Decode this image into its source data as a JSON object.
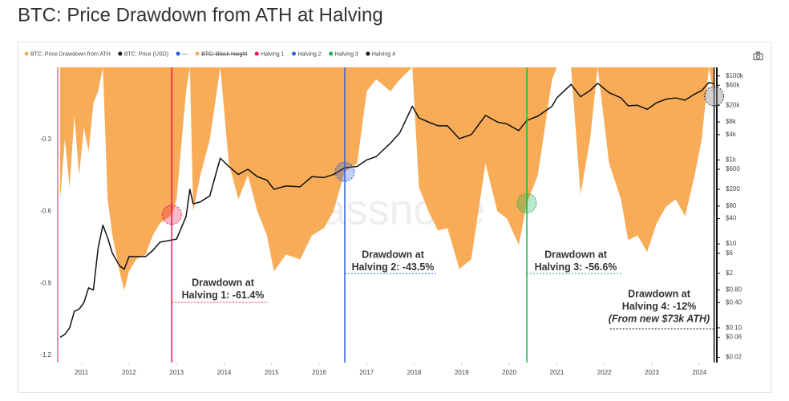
{
  "chart_data": {
    "type": "area",
    "title": "BTC: Price Drawdown from ATH at Halving",
    "watermark": "glassnode",
    "x": [
      2010.55,
      2010.65,
      2010.75,
      2010.85,
      2010.95,
      2011.05,
      2011.15,
      2011.25,
      2011.35,
      2011.45,
      2011.55,
      2011.65,
      2011.8,
      2011.9,
      2012.0,
      2012.15,
      2012.35,
      2012.5,
      2012.65,
      2012.9,
      2013.0,
      2013.2,
      2013.28,
      2013.35,
      2013.5,
      2013.7,
      2013.92,
      2014.1,
      2014.3,
      2014.5,
      2014.7,
      2014.9,
      2015.05,
      2015.3,
      2015.6,
      2015.85,
      2016.1,
      2016.3,
      2016.54,
      2016.8,
      2017.0,
      2017.2,
      2017.5,
      2017.7,
      2017.96,
      2018.1,
      2018.3,
      2018.5,
      2018.7,
      2018.95,
      2019.2,
      2019.5,
      2019.75,
      2019.95,
      2020.2,
      2020.37,
      2020.6,
      2020.9,
      2021.0,
      2021.3,
      2021.5,
      2021.7,
      2021.86,
      2022.1,
      2022.35,
      2022.5,
      2022.7,
      2022.9,
      2023.1,
      2023.3,
      2023.5,
      2023.7,
      2023.9,
      2024.05,
      2024.2,
      2024.31
    ],
    "series": [
      {
        "name": "BTC: Price Drawdown from ATH",
        "color": "#f8ac57",
        "axis": "y",
        "values": [
          -0.55,
          -0.3,
          -0.5,
          -0.2,
          -0.45,
          -0.25,
          -0.35,
          -0.15,
          -0.1,
          0,
          -0.55,
          -0.7,
          -0.85,
          -0.93,
          -0.85,
          -0.8,
          -0.78,
          -0.7,
          -0.65,
          -0.614,
          -0.55,
          -0.1,
          0,
          -0.6,
          -0.45,
          -0.3,
          0,
          -0.4,
          -0.55,
          -0.45,
          -0.6,
          -0.7,
          -0.85,
          -0.78,
          -0.8,
          -0.7,
          -0.67,
          -0.6,
          -0.435,
          -0.4,
          -0.1,
          -0.05,
          -0.1,
          -0.05,
          0,
          -0.5,
          -0.6,
          -0.68,
          -0.67,
          -0.84,
          -0.8,
          -0.4,
          -0.6,
          -0.63,
          -0.74,
          -0.566,
          -0.45,
          -0.05,
          0,
          0,
          -0.53,
          -0.3,
          0,
          -0.4,
          -0.55,
          -0.72,
          -0.7,
          -0.77,
          -0.65,
          -0.58,
          -0.55,
          -0.62,
          -0.45,
          -0.3,
          0,
          -0.12
        ]
      },
      {
        "name": "BTC: Price (USD)",
        "color": "#111111",
        "axis": "y2",
        "type": "line",
        "values": [
          0.06,
          0.07,
          0.1,
          0.25,
          0.28,
          0.4,
          0.9,
          0.8,
          8,
          28,
          14,
          6,
          3,
          2.5,
          5,
          5,
          5,
          7,
          11,
          12.4,
          13,
          45,
          200,
          90,
          100,
          140,
          1100,
          700,
          450,
          600,
          400,
          330,
          200,
          240,
          230,
          400,
          380,
          450,
          650,
          700,
          1000,
          1200,
          2500,
          4500,
          19000,
          10000,
          8000,
          6500,
          6500,
          3200,
          4000,
          11500,
          8000,
          7200,
          5000,
          8700,
          11000,
          19000,
          30000,
          63000,
          32000,
          45000,
          67000,
          40000,
          30000,
          19500,
          20000,
          16000,
          23000,
          28000,
          30000,
          26500,
          37000,
          45000,
          70000,
          64000
        ]
      }
    ],
    "legend_extra": [
      {
        "name": "—",
        "color": "#2b5fd9"
      },
      {
        "name": "BTC: Block Height",
        "color": "#f8ac57",
        "hidden": true
      }
    ],
    "halvings": [
      {
        "name": "Halving 1",
        "x": 2012.9,
        "color": "#e8174d",
        "annotation": [
          "Drawdown at",
          "Halving 1: -61.4%"
        ]
      },
      {
        "name": "Halving 2",
        "x": 2016.54,
        "color": "#2b5fd9",
        "annotation": [
          "Drawdown at",
          "Halving 2: -43.5%"
        ]
      },
      {
        "name": "Halving 3",
        "x": 2020.37,
        "color": "#18b34f",
        "annotation": [
          "Drawdown at",
          "Halving 3: -56.6%"
        ]
      },
      {
        "name": "Halving 4",
        "x": 2024.31,
        "color": "#111111",
        "annotation": [
          "Drawdown at",
          "Halving 4: -12%",
          "(From new $73k ATH)"
        ]
      }
    ],
    "xlim": [
      2010.5,
      2024.35
    ],
    "xticks": [
      2011,
      2012,
      2013,
      2014,
      2015,
      2016,
      2017,
      2018,
      2019,
      2020,
      2021,
      2022,
      2023,
      2024
    ],
    "ylim": [
      -1.23,
      0
    ],
    "yticks": [
      -0.3,
      -0.6,
      -0.9,
      -1.2
    ],
    "y2lim": [
      0.015,
      160000
    ],
    "y2log": true,
    "y2ticks": [
      {
        "value": 100000,
        "label": "$100k"
      },
      {
        "value": 60000,
        "label": "$60k"
      },
      {
        "value": 20000,
        "label": "$20k"
      },
      {
        "value": 8000,
        "label": "$8k"
      },
      {
        "value": 4000,
        "label": "$4k"
      },
      {
        "value": 1000,
        "label": "$1k"
      },
      {
        "value": 600,
        "label": "$600"
      },
      {
        "value": 200,
        "label": "$200"
      },
      {
        "value": 80,
        "label": "$80"
      },
      {
        "value": 40,
        "label": "$40"
      },
      {
        "value": 10,
        "label": "$10"
      },
      {
        "value": 6,
        "label": "$6"
      },
      {
        "value": 2,
        "label": "$2"
      },
      {
        "value": 0.8,
        "label": "$0.80"
      },
      {
        "value": 0.4,
        "label": "$0.40"
      },
      {
        "value": 0.1,
        "label": "$0.10"
      },
      {
        "value": 0.06,
        "label": "$0.06"
      },
      {
        "value": 0.02,
        "label": "$0.02"
      }
    ],
    "grid": false
  }
}
